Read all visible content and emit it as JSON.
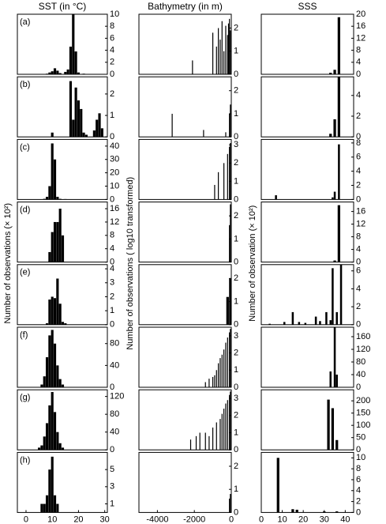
{
  "chart_data": [
    {
      "type": "bar",
      "title": "SST (in °C)",
      "ylabel": "Number of observations (× 10²)",
      "label": "(a)",
      "x": [
        8,
        9,
        10,
        11,
        12,
        13,
        15,
        16,
        17,
        18,
        19,
        20,
        22
      ],
      "values": [
        0.1,
        0.3,
        0.5,
        1,
        0.6,
        0.2,
        0.4,
        0.8,
        4.6,
        10,
        3.8,
        0.3,
        0.1
      ],
      "xlim": [
        -3.3,
        31
      ],
      "ylim": [
        0,
        10
      ],
      "yticks": [
        0,
        2,
        4,
        6,
        8,
        10
      ],
      "color": "#000000"
    },
    {
      "type": "bar",
      "title": "Bathymetry (in m)",
      "ylabel": "Number of observations ( log10 transformed)",
      "label": null,
      "x": [
        -2100,
        -1000,
        -800,
        -700,
        -600,
        -500,
        -400,
        -300,
        -200,
        -150,
        -100,
        -50
      ],
      "values": [
        0.6,
        1.8,
        1.2,
        2.0,
        1.5,
        2.3,
        1.0,
        2.1,
        1.7,
        2.2,
        2.4,
        1.9
      ],
      "xlim": [
        -5000,
        0
      ],
      "ylim": [
        0,
        2.6
      ],
      "yticks": [
        0,
        1,
        2
      ],
      "color": "#000000"
    },
    {
      "type": "bar",
      "title": "SSS",
      "ylabel": "Number of observation (× 10²)",
      "label": null,
      "x": [
        33,
        35,
        37
      ],
      "values": [
        0.5,
        1.5,
        19
      ],
      "xlim": [
        0,
        44
      ],
      "ylim": [
        0,
        20
      ],
      "yticks": [
        0,
        4,
        8,
        12,
        16,
        20
      ],
      "color": "#000000"
    },
    {
      "type": "bar",
      "label": "(b)",
      "x": [
        10,
        17,
        18,
        19,
        20,
        21,
        22,
        23,
        26,
        27,
        28,
        29
      ],
      "values": [
        0.2,
        2.6,
        0.8,
        2.3,
        1.7,
        1.3,
        0.2,
        0.1,
        0.3,
        0.8,
        1.1,
        0.4
      ],
      "xlim": [
        -3.3,
        31
      ],
      "ylim": [
        0,
        2.8
      ],
      "yticks": [
        0,
        1,
        2
      ],
      "color": "#000000"
    },
    {
      "type": "bar",
      "x": [
        -3200,
        -1500,
        -300,
        -100,
        -50
      ],
      "values": [
        1.0,
        0.3,
        0.2,
        1.0,
        1.4
      ],
      "xlim": [
        -5000,
        0
      ],
      "ylim": [
        0,
        2.6
      ],
      "yticks": [
        0,
        1,
        2
      ],
      "color": "#000000"
    },
    {
      "type": "bar",
      "x": [
        33,
        35,
        37
      ],
      "values": [
        0.3,
        1.7,
        5.8
      ],
      "xlim": [
        0,
        44
      ],
      "ylim": [
        0,
        5.8
      ],
      "yticks": [
        0,
        2,
        4
      ],
      "color": "#000000"
    },
    {
      "type": "bar",
      "label": "(c)",
      "x": [
        7,
        8,
        9,
        10,
        11,
        12,
        13,
        15
      ],
      "values": [
        0.5,
        2,
        10,
        42,
        30,
        2,
        0.5,
        0.3
      ],
      "xlim": [
        -3.3,
        31
      ],
      "ylim": [
        0,
        45
      ],
      "yticks": [
        0,
        10,
        20,
        30,
        40
      ],
      "color": "#000000"
    },
    {
      "type": "bar",
      "x": [
        -900,
        -700,
        -400,
        -200,
        -100,
        -50
      ],
      "values": [
        0.8,
        1.5,
        2.0,
        2.5,
        2.9,
        3.1
      ],
      "xlim": [
        -5000,
        0
      ],
      "ylim": [
        0,
        3.3
      ],
      "yticks": [
        0,
        1,
        2,
        3
      ],
      "color": "#000000"
    },
    {
      "type": "bar",
      "x": [
        7,
        34,
        35,
        37
      ],
      "values": [
        0.6,
        0.3,
        1.1,
        7.8
      ],
      "xlim": [
        0,
        44
      ],
      "ylim": [
        0,
        8.5
      ],
      "yticks": [
        0,
        2,
        4,
        6,
        8
      ],
      "color": "#000000"
    },
    {
      "type": "bar",
      "label": "(d)",
      "x": [
        9,
        10,
        11,
        12,
        13,
        14
      ],
      "values": [
        3,
        9,
        12,
        12,
        16,
        8
      ],
      "xlim": [
        -3.3,
        31
      ],
      "ylim": [
        0,
        18
      ],
      "yticks": [
        0,
        4,
        8,
        12,
        16
      ],
      "color": "#000000"
    },
    {
      "type": "bar",
      "x": [
        -100,
        -50
      ],
      "values": [
        1.6,
        2.5
      ],
      "xlim": [
        -5000,
        0
      ],
      "ylim": [
        0,
        2.6
      ],
      "yticks": [
        0,
        1,
        2
      ],
      "color": "#000000"
    },
    {
      "type": "bar",
      "x": [
        35,
        37
      ],
      "values": [
        0.5,
        18
      ],
      "xlim": [
        0,
        44
      ],
      "ylim": [
        0,
        19
      ],
      "yticks": [
        0,
        4,
        8,
        12,
        16
      ],
      "color": "#000000"
    },
    {
      "type": "bar",
      "label": "(e)",
      "x": [
        8,
        9,
        10,
        11,
        12,
        13,
        14,
        15
      ],
      "values": [
        0.1,
        1.8,
        2,
        1.9,
        3.3,
        1.5,
        0.2,
        0.1
      ],
      "xlim": [
        -3.3,
        31
      ],
      "ylim": [
        0,
        4.3
      ],
      "yticks": [
        0,
        1,
        2,
        3,
        4
      ],
      "color": "#000000"
    },
    {
      "type": "bar",
      "x": [
        -200,
        -50
      ],
      "values": [
        1.2,
        2.0
      ],
      "xlim": [
        -5000,
        0
      ],
      "ylim": [
        0,
        2.6
      ],
      "yticks": [
        0,
        1,
        2
      ],
      "color": "#000000"
    },
    {
      "type": "bar",
      "x": [
        4,
        11,
        15,
        18,
        21,
        26,
        28,
        31,
        33,
        34,
        36,
        38
      ],
      "values": [
        0.1,
        0.3,
        1.4,
        0.3,
        0.2,
        0.9,
        0.4,
        1.4,
        0.5,
        6.3,
        1.4,
        7
      ],
      "xlim": [
        0,
        44
      ],
      "ylim": [
        0,
        6.7
      ],
      "yticks": [
        0,
        2,
        4,
        6
      ],
      "color": "#000000"
    },
    {
      "type": "bar",
      "label": "(f)",
      "x": [
        6,
        7,
        8,
        9,
        10,
        11,
        12,
        13,
        14
      ],
      "values": [
        5,
        20,
        55,
        95,
        105,
        80,
        40,
        15,
        5
      ],
      "xlim": [
        -3.3,
        31
      ],
      "ylim": [
        0,
        110
      ],
      "yticks": [
        0,
        40,
        80
      ],
      "color": "#000000"
    },
    {
      "type": "bar",
      "x": [
        -1400,
        -1200,
        -1000,
        -900,
        -800,
        -700,
        -600,
        -500,
        -400,
        -300,
        -200,
        -100,
        -50
      ],
      "values": [
        0.3,
        0.5,
        0.6,
        0.7,
        1.0,
        1.4,
        1.7,
        1.9,
        2.2,
        2.6,
        2.9,
        3.2,
        3.4
      ],
      "xlim": [
        -5000,
        0
      ],
      "ylim": [
        0,
        3.5
      ],
      "yticks": [
        0,
        1,
        2,
        3
      ],
      "color": "#000000"
    },
    {
      "type": "bar",
      "x": [
        33,
        35,
        36
      ],
      "values": [
        50,
        190,
        40
      ],
      "xlim": [
        0,
        44
      ],
      "ylim": [
        0,
        190
      ],
      "yticks": [
        0,
        40,
        80,
        120,
        160
      ],
      "color": "#000000"
    },
    {
      "type": "bar",
      "label": "(g)",
      "x": [
        5,
        6,
        7,
        8,
        9,
        10,
        11,
        12,
        13,
        14
      ],
      "values": [
        5,
        10,
        30,
        60,
        100,
        130,
        85,
        40,
        15,
        5
      ],
      "xlim": [
        -3.3,
        31
      ],
      "ylim": [
        0,
        135
      ],
      "yticks": [
        0,
        40,
        80,
        120
      ],
      "color": "#000000"
    },
    {
      "type": "bar",
      "x": [
        -2200,
        -1900,
        -1700,
        -1400,
        -1200,
        -1000,
        -800,
        -600,
        -500,
        -400,
        -300,
        -200,
        -100,
        -50
      ],
      "values": [
        0.6,
        0.8,
        1.0,
        1.0,
        0.8,
        1.3,
        1.6,
        1.8,
        2.1,
        2.4,
        2.7,
        2.9,
        3.2,
        3.4
      ],
      "xlim": [
        -5000,
        0
      ],
      "ylim": [
        0,
        3.5
      ],
      "yticks": [
        0,
        1,
        2,
        3
      ],
      "color": "#000000"
    },
    {
      "type": "bar",
      "x": [
        32,
        34,
        36
      ],
      "values": [
        205,
        170,
        40
      ],
      "xlim": [
        0,
        44
      ],
      "ylim": [
        0,
        245
      ],
      "yticks": [
        0,
        50,
        100,
        150,
        200
      ],
      "color": "#000000"
    },
    {
      "type": "bar",
      "label": "(h)",
      "x": [
        6,
        7,
        8,
        9,
        10,
        11,
        12
      ],
      "values": [
        1,
        1,
        2,
        5,
        6.5,
        2,
        1
      ],
      "xlim": [
        -3.3,
        31
      ],
      "ylim": [
        0,
        7
      ],
      "yticks": [
        1,
        3,
        5
      ],
      "xticks": [
        0,
        10,
        20,
        30
      ],
      "color": "#000000"
    },
    {
      "type": "bar",
      "x": [
        -100,
        -50
      ],
      "values": [
        0.6,
        0.8
      ],
      "xlim": [
        -5000,
        0
      ],
      "ylim": [
        0,
        2.6
      ],
      "yticks": [
        0,
        1,
        2
      ],
      "xticks": [
        -4000,
        -2000,
        0
      ],
      "color": "#000000"
    },
    {
      "type": "bar",
      "x": [
        8,
        15,
        17,
        30,
        36
      ],
      "values": [
        10,
        0.6,
        0.5,
        0.2,
        0.2
      ],
      "xlim": [
        0,
        44
      ],
      "ylim": [
        0,
        11
      ],
      "yticks": [
        0,
        2,
        4,
        6,
        8,
        10
      ],
      "xticks": [
        0,
        10,
        20,
        30,
        40
      ],
      "color": "#000000"
    }
  ]
}
